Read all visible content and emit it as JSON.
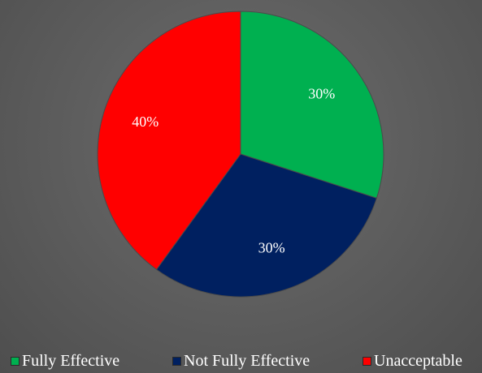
{
  "chart_data": {
    "type": "pie",
    "categories": [
      "Fully Effective",
      "Not Fully Effective",
      "Unacceptable"
    ],
    "values": [
      30,
      30,
      40
    ],
    "data_labels": [
      "30%",
      "30%",
      "40%"
    ],
    "colors": [
      "#00b050",
      "#002060",
      "#ff0000"
    ],
    "legend_position": "bottom",
    "title": ""
  }
}
